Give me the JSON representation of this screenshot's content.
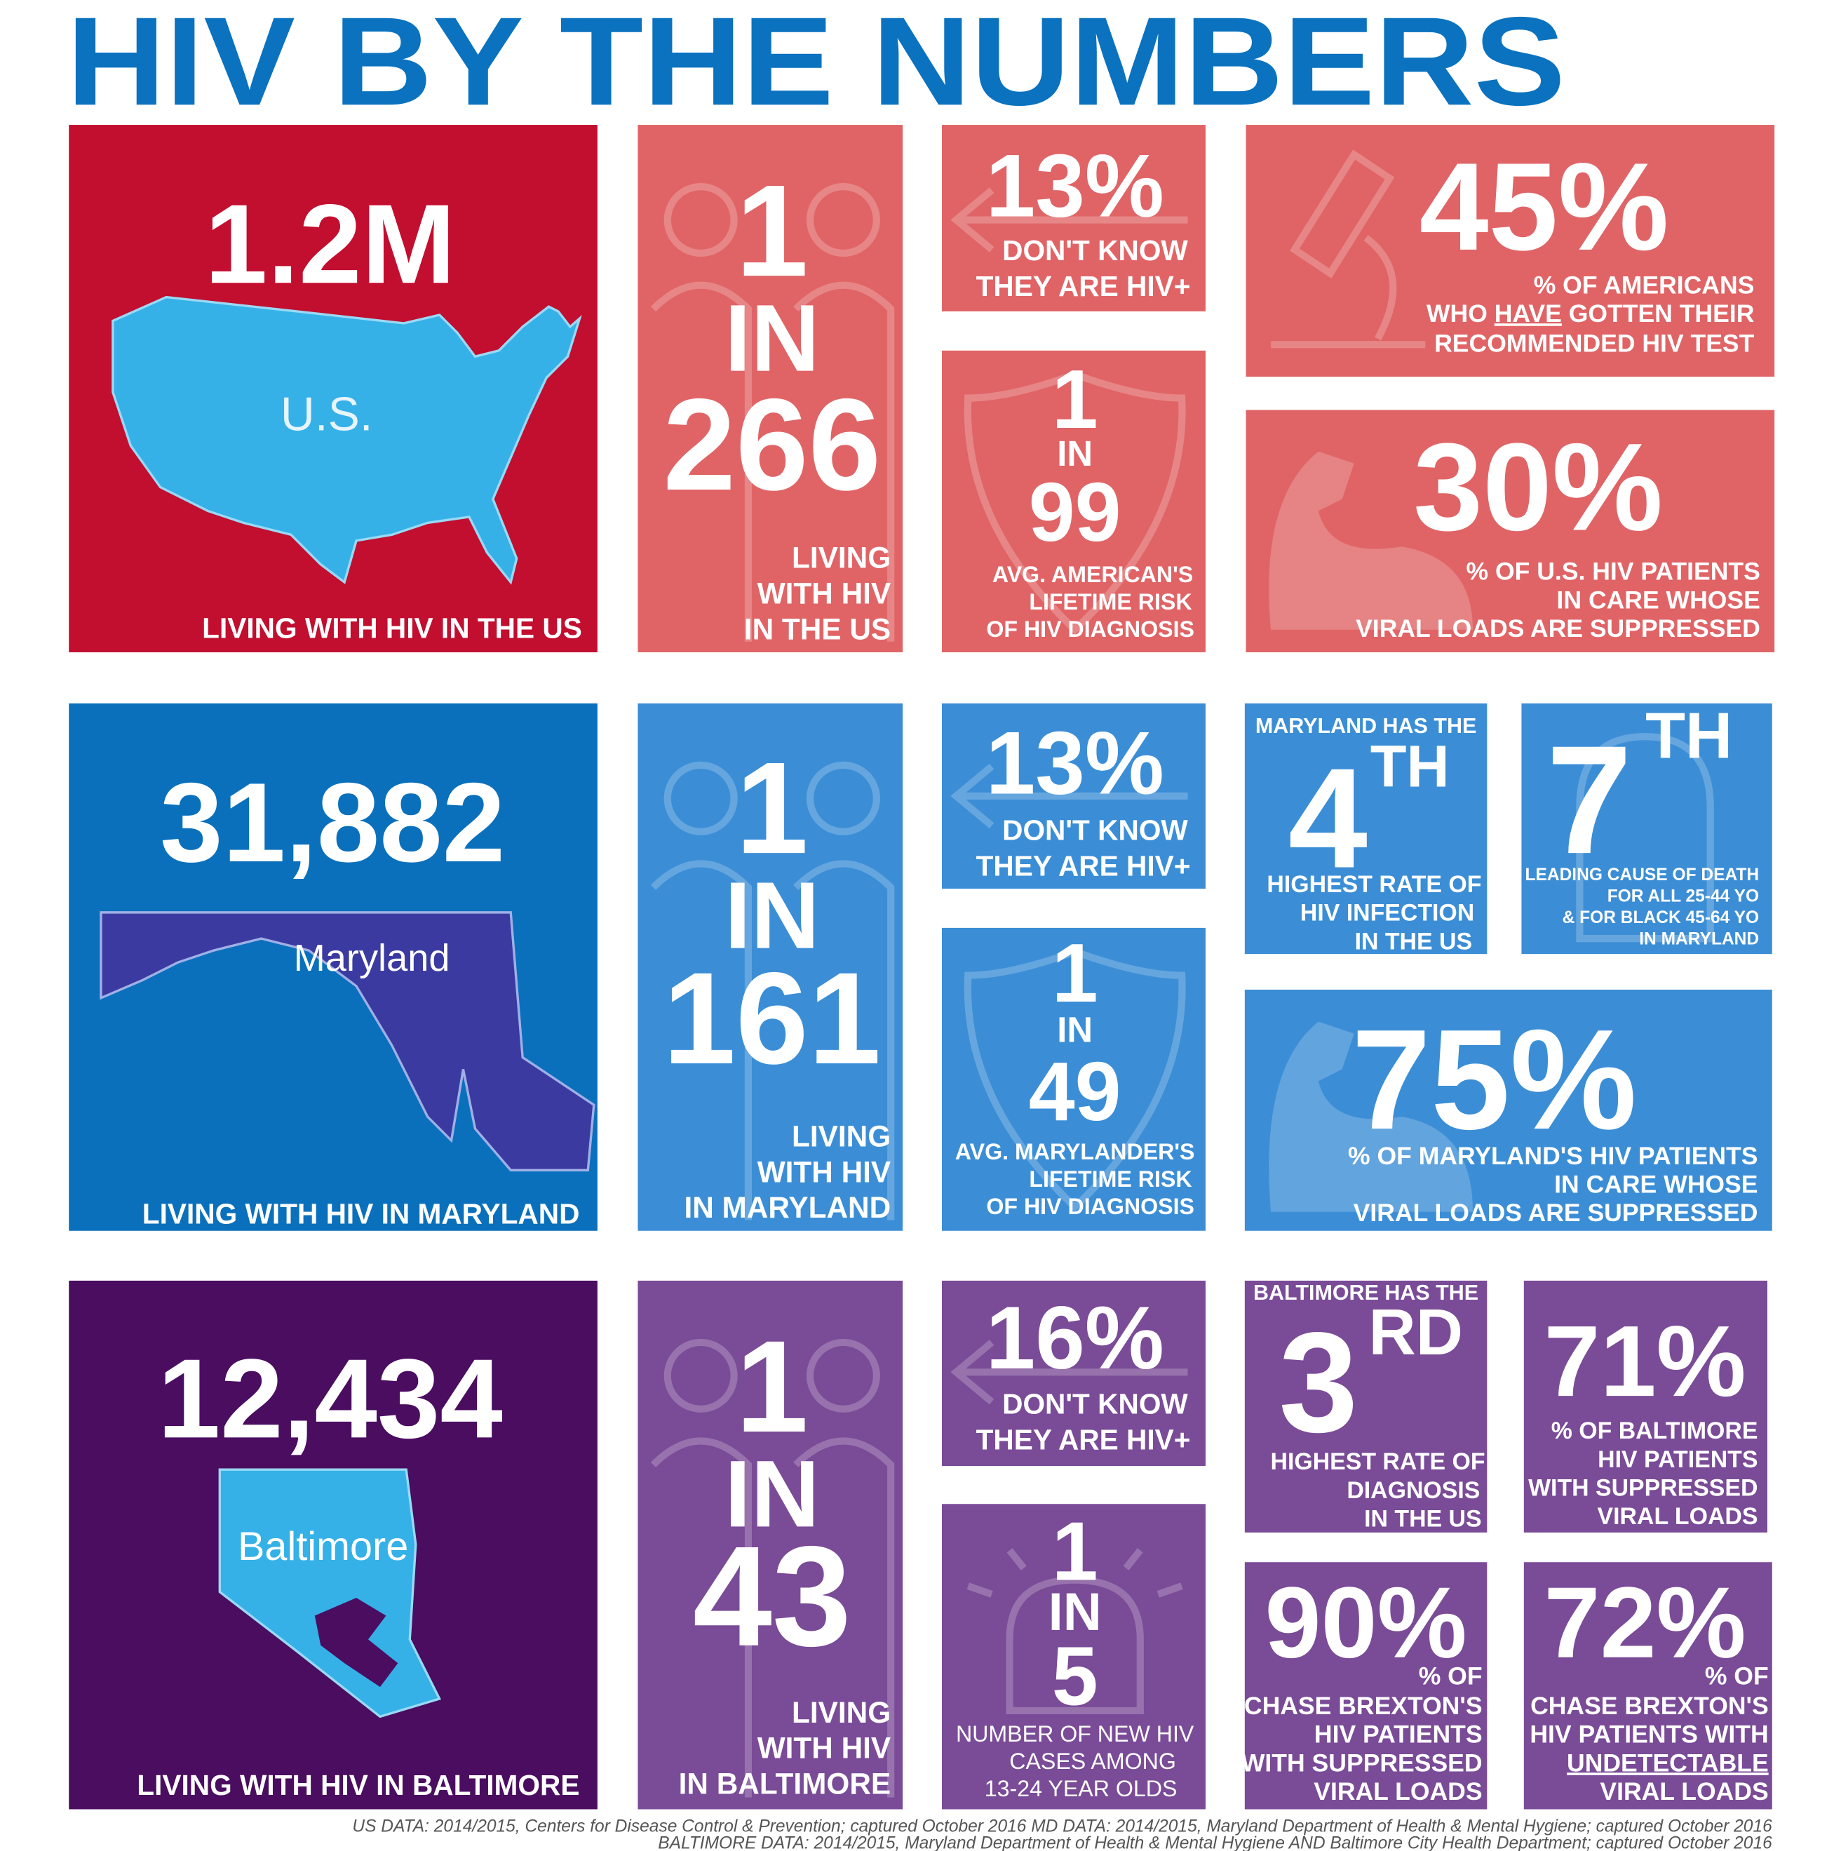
{
  "header": {
    "title": "HIV BY THE NUMBERS"
  },
  "us": {
    "total": {
      "number": "1.2M",
      "map_label": "U.S.",
      "caption": "LIVING WITH HIV IN THE US"
    },
    "ratio": {
      "lines": [
        "1",
        "IN",
        "266"
      ],
      "caption": [
        "LIVING",
        "WITH HIV",
        "IN THE US"
      ]
    },
    "unaware": {
      "number": "13%",
      "caption": [
        "DON'T KNOW",
        "THEY ARE HIV+"
      ]
    },
    "risk": {
      "lines": [
        "1",
        "IN",
        "99"
      ],
      "caption": [
        "AVG. AMERICAN'S",
        "LIFETIME RISK",
        "OF HIV DIAGNOSIS"
      ]
    },
    "tested": {
      "number": "45%",
      "caption": [
        "% OF AMERICANS",
        [
          "WHO ",
          "HAVE",
          " GOTTEN THEIR"
        ],
        "RECOMMENDED HIV TEST"
      ]
    },
    "suppressed": {
      "number": "30%",
      "caption": [
        "% OF U.S. HIV PATIENTS",
        "IN CARE WHOSE",
        "VIRAL LOADS ARE SUPPRESSED"
      ]
    }
  },
  "maryland": {
    "total": {
      "number": "31,882",
      "map_label": "Maryland",
      "caption": "LIVING WITH HIV IN MARYLAND"
    },
    "ratio": {
      "lines": [
        "1",
        "IN",
        "161"
      ],
      "caption": [
        "LIVING",
        "WITH HIV",
        "IN MARYLAND"
      ]
    },
    "unaware": {
      "number": "13%",
      "caption": [
        "DON'T KNOW",
        "THEY ARE HIV+"
      ]
    },
    "risk": {
      "lines": [
        "1",
        "IN",
        "49"
      ],
      "caption": [
        "AVG. MARYLANDER'S",
        "LIFETIME RISK",
        "OF HIV DIAGNOSIS"
      ]
    },
    "rank": {
      "intro": "MARYLAND HAS THE",
      "number": "4",
      "suffix": "TH",
      "caption": [
        "HIGHEST RATE OF",
        "HIV INFECTION",
        "IN THE US"
      ]
    },
    "death": {
      "number": "7",
      "suffix": "TH",
      "caption": [
        "LEADING CAUSE OF DEATH",
        "FOR ALL 25-44 YO",
        "& FOR BLACK 45-64 YO",
        "IN MARYLAND"
      ]
    },
    "suppressed": {
      "number": "75%",
      "caption": [
        "% OF MARYLAND'S HIV PATIENTS",
        "IN CARE WHOSE",
        "VIRAL LOADS ARE SUPPRESSED"
      ]
    }
  },
  "baltimore": {
    "total": {
      "number": "12,434",
      "map_label": "Baltimore",
      "caption": "LIVING WITH HIV IN BALTIMORE"
    },
    "ratio": {
      "lines": [
        "1",
        "IN",
        "43"
      ],
      "caption": [
        "LIVING",
        "WITH HIV",
        "IN BALTIMORE"
      ]
    },
    "unaware": {
      "number": "16%",
      "caption": [
        "DON'T KNOW",
        "THEY ARE HIV+"
      ]
    },
    "youth": {
      "lines": [
        "1",
        "IN",
        "5"
      ],
      "caption": [
        "NUMBER OF NEW HIV",
        "CASES AMONG",
        "13-24 YEAR OLDS"
      ]
    },
    "rank": {
      "intro": "BALTIMORE HAS THE",
      "number": "3",
      "suffix": "RD",
      "caption": [
        "HIGHEST RATE OF",
        "DIAGNOSIS",
        "IN THE US"
      ]
    },
    "suppressed": {
      "number": "71%",
      "caption": [
        "% OF BALTIMORE",
        "HIV PATIENTS",
        "WITH SUPPRESSED",
        "VIRAL LOADS"
      ]
    },
    "chase_suppressed": {
      "number": "90%",
      "caption": [
        "% OF",
        "CHASE BREXTON'S",
        "HIV PATIENTS",
        "WITH SUPPRESSED",
        "VIRAL LOADS"
      ]
    },
    "chase_undetectable": {
      "number": "72%",
      "caption": [
        "% OF",
        "CHASE BREXTON'S",
        "HIV PATIENTS WITH",
        "UNDETECTABLE",
        "VIRAL LOADS"
      ]
    }
  },
  "footer": [
    "US DATA: 2014/2015, Centers for Disease Control & Prevention; captured October 2016 MD DATA:  2014/2015, Maryland Department of Health & Mental Hygiene; captured October 2016",
    "BALTIMORE DATA: 2014/2015, Maryland Department of Health & Mental Hygiene AND Baltimore City Health Department; captured October 2016"
  ]
}
